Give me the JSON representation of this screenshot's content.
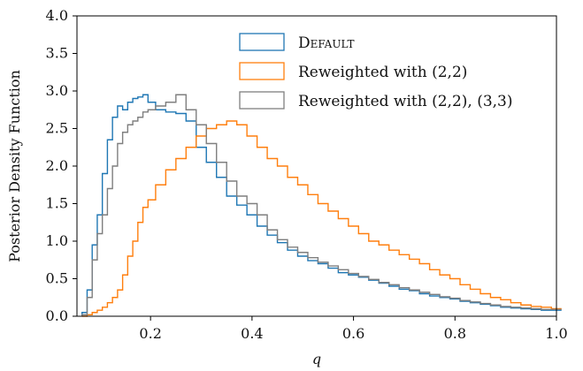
{
  "chart_data": {
    "type": "line",
    "step": true,
    "xlabel": "q",
    "ylabel": "Posterior Density Function",
    "xlim": [
      0.055,
      1.0
    ],
    "ylim": [
      0.0,
      4.0
    ],
    "x_ticks": [
      0.2,
      0.4,
      0.6,
      0.8,
      1.0
    ],
    "x_tick_labels": [
      "0.2",
      "0.4",
      "0.6",
      "0.8",
      "1.0"
    ],
    "y_ticks": [
      0.0,
      0.5,
      1.0,
      1.5,
      2.0,
      2.5,
      3.0,
      3.5,
      4.0
    ],
    "y_tick_labels": [
      "0.0",
      "0.5",
      "1.0",
      "1.5",
      "2.0",
      "2.5",
      "3.0",
      "3.5",
      "4.0"
    ],
    "grid": false,
    "legend_position": "upper-right",
    "x": [
      0.07,
      0.08,
      0.09,
      0.1,
      0.11,
      0.12,
      0.13,
      0.14,
      0.15,
      0.16,
      0.17,
      0.18,
      0.19,
      0.2,
      0.22,
      0.24,
      0.26,
      0.28,
      0.3,
      0.32,
      0.34,
      0.36,
      0.38,
      0.4,
      0.42,
      0.44,
      0.46,
      0.48,
      0.5,
      0.52,
      0.54,
      0.56,
      0.58,
      0.6,
      0.62,
      0.64,
      0.66,
      0.68,
      0.7,
      0.72,
      0.74,
      0.76,
      0.78,
      0.8,
      0.82,
      0.84,
      0.86,
      0.88,
      0.9,
      0.92,
      0.94,
      0.96,
      0.98,
      1.0
    ],
    "series": [
      {
        "name": "Default",
        "color": "#1f77b4",
        "values": [
          0.05,
          0.35,
          0.95,
          1.35,
          1.9,
          2.35,
          2.65,
          2.8,
          2.75,
          2.85,
          2.9,
          2.92,
          2.95,
          2.85,
          2.75,
          2.72,
          2.7,
          2.6,
          2.25,
          2.05,
          1.85,
          1.6,
          1.48,
          1.35,
          1.2,
          1.08,
          0.98,
          0.88,
          0.8,
          0.74,
          0.7,
          0.64,
          0.58,
          0.55,
          0.52,
          0.48,
          0.44,
          0.4,
          0.36,
          0.34,
          0.3,
          0.27,
          0.25,
          0.23,
          0.2,
          0.18,
          0.16,
          0.14,
          0.12,
          0.11,
          0.1,
          0.09,
          0.08,
          0.08
        ]
      },
      {
        "name": "Reweighted with (2,2)",
        "color": "#ff7f0e",
        "values": [
          0.0,
          0.02,
          0.05,
          0.08,
          0.12,
          0.18,
          0.25,
          0.35,
          0.55,
          0.8,
          1.0,
          1.25,
          1.45,
          1.55,
          1.75,
          1.95,
          2.1,
          2.25,
          2.4,
          2.5,
          2.55,
          2.6,
          2.55,
          2.4,
          2.25,
          2.1,
          2.0,
          1.85,
          1.75,
          1.62,
          1.5,
          1.4,
          1.3,
          1.2,
          1.1,
          1.0,
          0.95,
          0.88,
          0.82,
          0.76,
          0.7,
          0.62,
          0.55,
          0.5,
          0.42,
          0.36,
          0.3,
          0.25,
          0.22,
          0.18,
          0.15,
          0.13,
          0.12,
          0.1
        ]
      },
      {
        "name": "Reweighted with (2,2), (3,3)",
        "color": "#7f7f7f",
        "values": [
          0.02,
          0.25,
          0.75,
          1.1,
          1.35,
          1.7,
          2.0,
          2.3,
          2.45,
          2.55,
          2.6,
          2.65,
          2.72,
          2.75,
          2.8,
          2.85,
          2.95,
          2.75,
          2.55,
          2.3,
          2.05,
          1.8,
          1.6,
          1.5,
          1.35,
          1.15,
          1.02,
          0.92,
          0.85,
          0.78,
          0.72,
          0.67,
          0.62,
          0.57,
          0.53,
          0.49,
          0.45,
          0.42,
          0.38,
          0.35,
          0.32,
          0.29,
          0.26,
          0.24,
          0.21,
          0.19,
          0.17,
          0.15,
          0.13,
          0.12,
          0.11,
          0.1,
          0.09,
          0.09
        ]
      }
    ]
  },
  "legend": {
    "items": [
      {
        "label": "Default",
        "color": "#1f77b4"
      },
      {
        "label": "Reweighted with (2,2)",
        "color": "#ff7f0e"
      },
      {
        "label": "Reweighted with (2,2), (3,3)",
        "color": "#7f7f7f"
      }
    ]
  }
}
